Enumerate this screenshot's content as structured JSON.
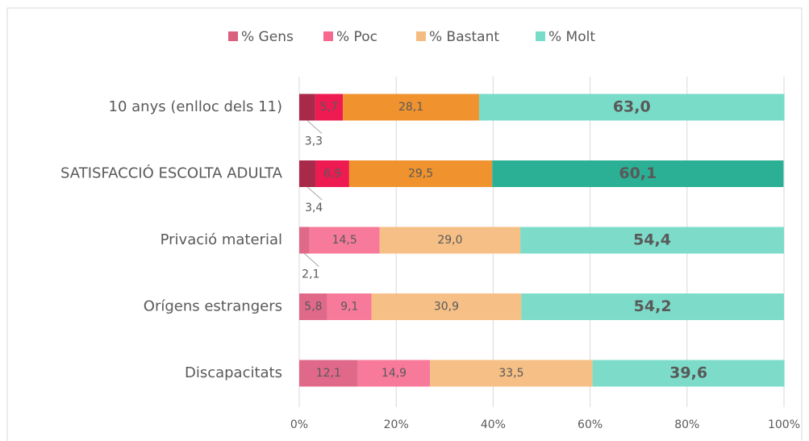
{
  "chart_data": {
    "type": "stacked-bar-horizontal",
    "categories": [
      "10 anys (enlloc dels 11)",
      "SATISFACCIÓ ESCOLTA ADULTA",
      "Privació material",
      "Orígens estrangers",
      "Discapacitats"
    ],
    "series": [
      {
        "name": "% Gens",
        "color": "#d9607f",
        "colors": [
          "#a8294a",
          "#a8294a",
          "#e0698a",
          "#e0698a",
          "#e0698a"
        ],
        "values": [
          3.3,
          3.4,
          2.1,
          5.8,
          12.1
        ],
        "value_labels": [
          "3,3",
          "3,4",
          "2,1",
          "5,8",
          "12,1"
        ]
      },
      {
        "name": "% Poc",
        "color": "#f7688f",
        "colors": [
          "#ee1a52",
          "#ee1a52",
          "#f77a9a",
          "#f77a9a",
          "#f77a9a"
        ],
        "values": [
          5.7,
          6.9,
          14.5,
          9.1,
          14.9
        ],
        "value_labels": [
          "5,7",
          "6,9",
          "14,5",
          "9,1",
          "14,9"
        ]
      },
      {
        "name": "% Bastant",
        "color": "#f5bc82",
        "colors": [
          "#f0932f",
          "#f0932f",
          "#f5bf85",
          "#f5bf85",
          "#f5bf85"
        ],
        "values": [
          28.1,
          29.5,
          29.0,
          30.9,
          33.5
        ],
        "value_labels": [
          "28,1",
          "29,5",
          "29,0",
          "30,9",
          "33,5"
        ]
      },
      {
        "name": "% Molt",
        "color": "#79dcc8",
        "colors": [
          "#79dcc8",
          "#2bb096",
          "#7ddcc9",
          "#7ddcc9",
          "#7ddcc9"
        ],
        "values": [
          63.0,
          60.1,
          54.4,
          54.2,
          39.6
        ],
        "value_labels": [
          "63,0",
          "60,1",
          "54,4",
          "54,2",
          "39,6"
        ]
      }
    ],
    "xlim": [
      0,
      100
    ],
    "xticks": [
      {
        "value": 0,
        "label": "0%"
      },
      {
        "value": 20,
        "label": "20%"
      },
      {
        "value": 40,
        "label": "40%"
      },
      {
        "value": 60,
        "label": "60%"
      },
      {
        "value": 80,
        "label": "80%"
      },
      {
        "value": 100,
        "label": "100%"
      }
    ],
    "grid": true,
    "legend": "top"
  }
}
